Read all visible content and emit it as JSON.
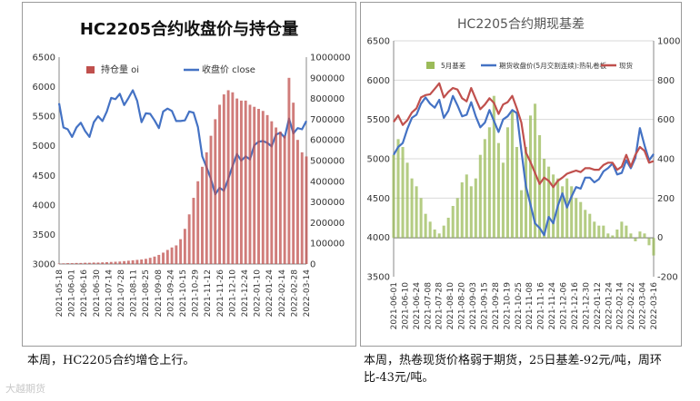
{
  "captions": {
    "left": "本周，HC2205合约增仓上行。",
    "right": "本周，热卷现货价格弱于期货，25日基差-92元/吨，周环比-43元/吨。"
  },
  "watermark": "大越期货",
  "chart_data": [
    {
      "type": "bar+line",
      "title": "HC2205合约收盘价与持仓量",
      "legend": {
        "placement": "top-left",
        "entries": [
          "持仓量 oi",
          "收盘价 close"
        ]
      },
      "x_tick_labels": [
        "2021-05-18",
        "2021-06-01",
        "2021-06-16",
        "2021-06-30",
        "2021-07-14",
        "2021-07-28",
        "2021-08-11",
        "2021-08-25",
        "2021-09-08",
        "2021-09-24",
        "2021-10-15",
        "2021-10-29",
        "2021-11-12",
        "2021-11-26",
        "2021-12-10",
        "2021-12-24",
        "2022-01-10",
        "2022-01-24",
        "2022-02-14",
        "2022-02-28",
        "2022-03-14"
      ],
      "y_left": {
        "min": 3000,
        "max": 6500,
        "ticks": [
          "3000",
          "3500",
          "4000",
          "4500",
          "5000",
          "5500",
          "6000",
          "6500"
        ]
      },
      "y_right": {
        "min": 0,
        "max": 1000000,
        "ticks": [
          "0",
          "100000",
          "200000",
          "300000",
          "400000",
          "500000",
          "600000",
          "700000",
          "800000",
          "900000",
          "1000000"
        ]
      },
      "colors": {
        "oi": "#c0504d",
        "close": "#4472c4"
      },
      "series": [
        {
          "name": "收盘价 close",
          "axis": "left",
          "values": [
            5720,
            5310,
            5280,
            5150,
            5310,
            5390,
            5250,
            5150,
            5400,
            5500,
            5420,
            5580,
            5810,
            5790,
            5880,
            5690,
            5810,
            5940,
            5760,
            5400,
            5550,
            5540,
            5430,
            5300,
            5580,
            5630,
            5590,
            5420,
            5420,
            5430,
            5580,
            5560,
            5320,
            4820,
            4640,
            4440,
            4180,
            4290,
            4240,
            4440,
            4660,
            4860,
            4750,
            4820,
            4770,
            5010,
            5070,
            5080,
            5050,
            4990,
            5190,
            5220,
            5140,
            5460,
            5210,
            5300,
            5280,
            5420
          ]
        },
        {
          "name": "持仓量 oi",
          "axis": "right",
          "values": [
            2000,
            3000,
            4000,
            4000,
            5000,
            5000,
            6000,
            6000,
            7000,
            7000,
            8000,
            9000,
            10000,
            11000,
            12000,
            14000,
            16000,
            18000,
            20000,
            22000,
            25000,
            30000,
            36000,
            44000,
            55000,
            68000,
            80000,
            90000,
            120000,
            170000,
            240000,
            320000,
            400000,
            470000,
            540000,
            620000,
            700000,
            770000,
            820000,
            840000,
            830000,
            800000,
            790000,
            790000,
            770000,
            760000,
            750000,
            740000,
            720000,
            690000,
            660000,
            640000,
            620000,
            900000,
            780000,
            600000,
            540000,
            520000
          ]
        }
      ]
    },
    {
      "type": "bar+line",
      "title": "HC2205合约期现基差",
      "legend": {
        "placement": "top",
        "entries": [
          "5月基差",
          "期货收盘价(5月交割连续):热轧卷板",
          "现货"
        ]
      },
      "x_tick_labels": [
        "2021-06-01",
        "2021-06-10",
        "2021-06-24",
        "2021-07-08",
        "2021-07-28",
        "2021-08-10",
        "2021-08-20",
        "2021-09-03",
        "2021-09-15",
        "2021-09-28",
        "2021-10-19",
        "2021-10-25",
        "2021-11-08",
        "2021-11-16",
        "2021-11-24",
        "2021-12-06",
        "2021-12-16",
        "2021-12-30",
        "2022-01-12",
        "2022-01-24",
        "2022-02-14",
        "2022-02-22",
        "2022-03-04",
        "2022-03-16"
      ],
      "y_left": {
        "min": 3500,
        "max": 6500,
        "ticks": [
          "3500",
          "4000",
          "4500",
          "5000",
          "5500",
          "6000",
          "6500"
        ]
      },
      "y_right": {
        "min": -200,
        "max": 1000,
        "ticks": [
          "-200",
          "0",
          "200",
          "400",
          "600",
          "800",
          "1000"
        ]
      },
      "colors": {
        "basis": "#9bbb59",
        "futures": "#4472c4",
        "spot": "#c0504d"
      },
      "series": [
        {
          "name": "5月基差",
          "axis": "right",
          "values": [
            420,
            500,
            460,
            380,
            300,
            260,
            200,
            120,
            80,
            40,
            20,
            60,
            100,
            160,
            200,
            280,
            320,
            260,
            300,
            420,
            500,
            560,
            720,
            480,
            380,
            560,
            640,
            460,
            240,
            460,
            620,
            680,
            520,
            400,
            360,
            320,
            300,
            260,
            300,
            260,
            200,
            180,
            140,
            120,
            80,
            60,
            60,
            20,
            10,
            40,
            80,
            60,
            20,
            -20,
            30,
            20,
            -40,
            -92
          ]
        },
        {
          "name": "期货收盘价(5月交割连续):热轧卷板",
          "axis": "left",
          "values": [
            5050,
            5150,
            5200,
            5380,
            5520,
            5560,
            5700,
            5780,
            5700,
            5650,
            5750,
            5520,
            5610,
            5800,
            5680,
            5540,
            5560,
            5720,
            5540,
            5400,
            5460,
            5620,
            5480,
            5340,
            5500,
            5540,
            5620,
            5580,
            5100,
            4650,
            4420,
            4180,
            4120,
            4030,
            4260,
            4180,
            4400,
            4560,
            4380,
            4520,
            4640,
            4620,
            4760,
            4760,
            4700,
            4740,
            4840,
            4880,
            4940,
            4800,
            4820,
            4980,
            4880,
            5010,
            5390,
            5170,
            4980,
            5060
          ]
        },
        {
          "name": "现货",
          "axis": "left",
          "values": [
            5470,
            5550,
            5430,
            5490,
            5590,
            5640,
            5780,
            5810,
            5820,
            5890,
            5960,
            5780,
            5850,
            5900,
            5880,
            5770,
            5730,
            5900,
            5760,
            5630,
            5690,
            5770,
            5710,
            5570,
            5690,
            5720,
            5800,
            5640,
            5460,
            5080,
            4960,
            4820,
            4680,
            4760,
            4720,
            4640,
            4720,
            4760,
            4810,
            4830,
            4850,
            4830,
            4880,
            4880,
            4860,
            4860,
            4920,
            4950,
            4950,
            4860,
            4900,
            5050,
            4900,
            5050,
            5150,
            5100,
            4950,
            4970
          ]
        }
      ]
    }
  ]
}
